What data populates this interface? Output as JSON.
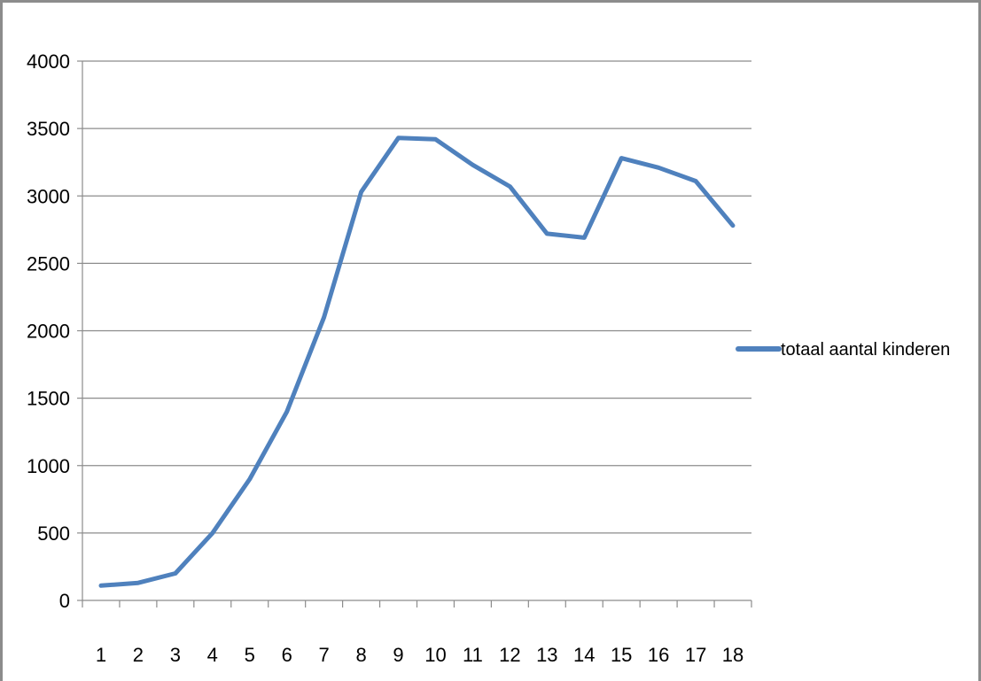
{
  "chart_data": {
    "type": "line",
    "title": "",
    "categories": [
      "1",
      "2",
      "3",
      "4",
      "5",
      "6",
      "7",
      "8",
      "9",
      "10",
      "11",
      "12",
      "13",
      "14",
      "15",
      "16",
      "17",
      "18"
    ],
    "series": [
      {
        "name": "totaal aantal kinderen",
        "values": [
          110,
          130,
          200,
          500,
          900,
          1400,
          2100,
          3030,
          3430,
          3420,
          3230,
          3070,
          2720,
          2690,
          3280,
          3210,
          3110,
          2780
        ],
        "color": "#4f81bd"
      }
    ],
    "ylim": [
      0,
      4000
    ],
    "yticks": [
      0,
      500,
      1000,
      1500,
      2000,
      2500,
      3000,
      3500,
      4000
    ],
    "xlabel": "",
    "ylabel": "",
    "grid": true,
    "legend": "right"
  }
}
